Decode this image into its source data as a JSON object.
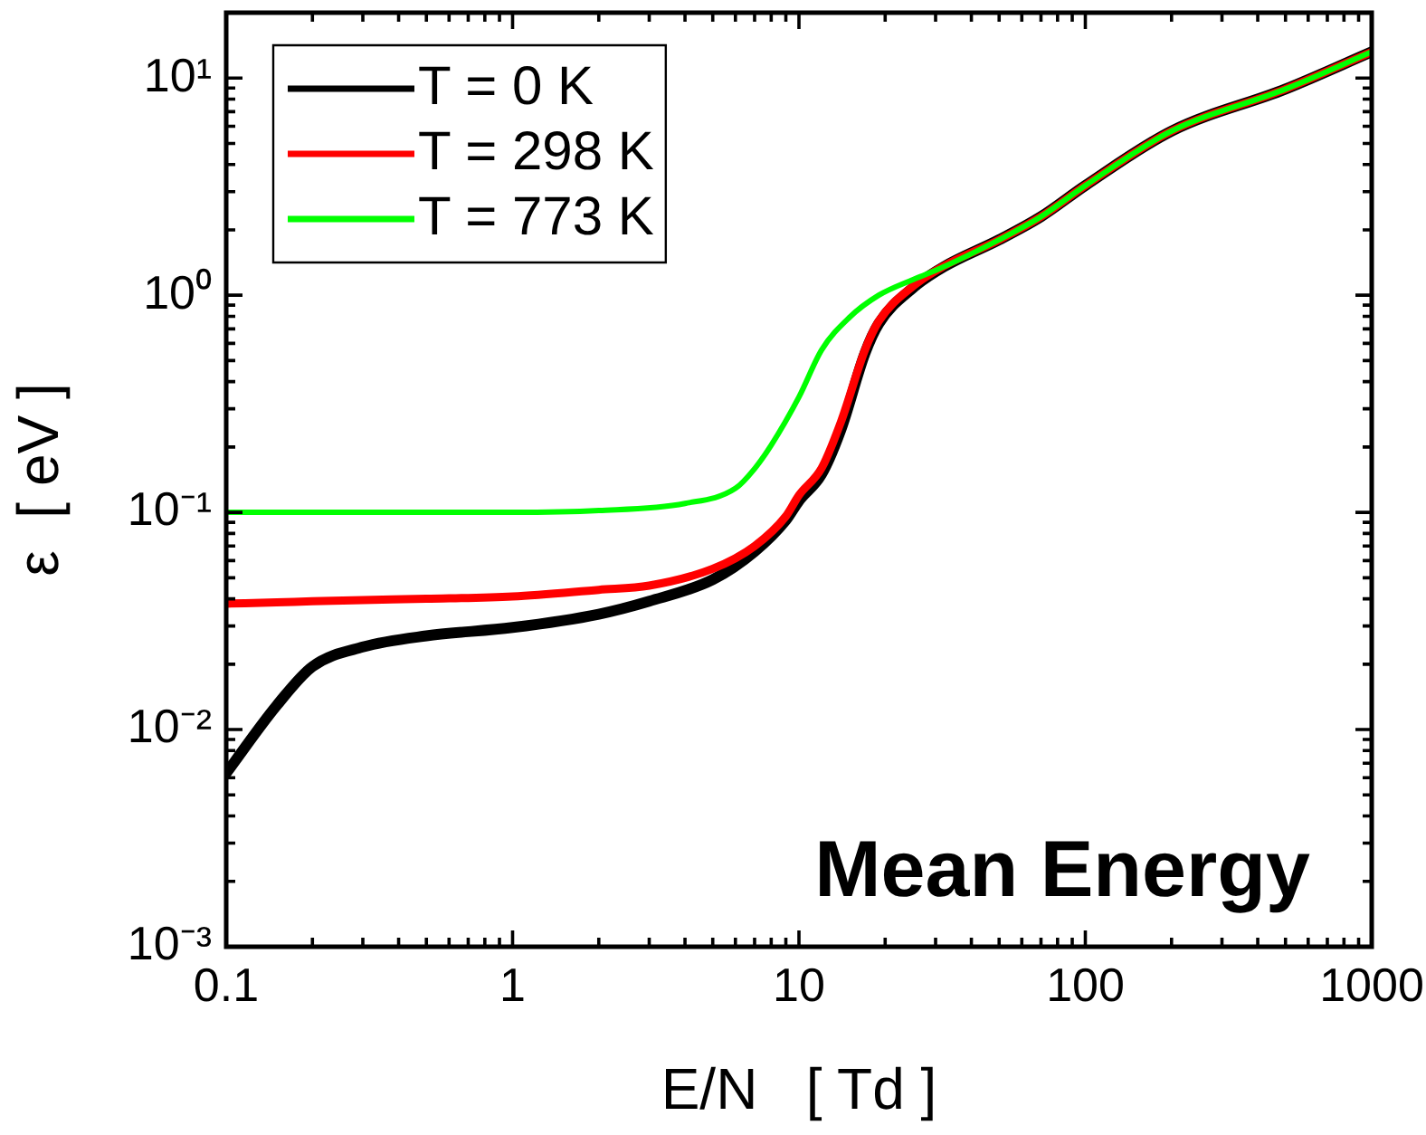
{
  "chart_data": {
    "type": "line",
    "xlabel": "E/N   [ Td ]",
    "ylabel": "ε  [ eV ]",
    "log": "xy",
    "legend": "top left",
    "grid": false,
    "marker": "none",
    "line_style": "solid",
    "xlim": [
      0.1,
      1000
    ],
    "ylim": [
      0.001,
      20
    ],
    "xticks": [
      {
        "value": 0.1,
        "label": "0.1"
      },
      {
        "value": 0.2,
        "label": null
      },
      {
        "value": 0.3,
        "label": null
      },
      {
        "value": 0.4,
        "label": null
      },
      {
        "value": 0.5,
        "label": null
      },
      {
        "value": 0.6,
        "label": null
      },
      {
        "value": 0.7,
        "label": null
      },
      {
        "value": 0.8,
        "label": null
      },
      {
        "value": 0.9,
        "label": null
      },
      {
        "value": 1,
        "label": "1"
      },
      {
        "value": 2,
        "label": null
      },
      {
        "value": 3,
        "label": null
      },
      {
        "value": 4,
        "label": null
      },
      {
        "value": 5,
        "label": null
      },
      {
        "value": 6,
        "label": null
      },
      {
        "value": 7,
        "label": null
      },
      {
        "value": 8,
        "label": null
      },
      {
        "value": 9,
        "label": null
      },
      {
        "value": 10,
        "label": "10"
      },
      {
        "value": 20,
        "label": null
      },
      {
        "value": 30,
        "label": null
      },
      {
        "value": 40,
        "label": null
      },
      {
        "value": 50,
        "label": null
      },
      {
        "value": 60,
        "label": null
      },
      {
        "value": 70,
        "label": null
      },
      {
        "value": 80,
        "label": null
      },
      {
        "value": 90,
        "label": null
      },
      {
        "value": 100,
        "label": "100"
      },
      {
        "value": 200,
        "label": null
      },
      {
        "value": 300,
        "label": null
      },
      {
        "value": 400,
        "label": null
      },
      {
        "value": 500,
        "label": null
      },
      {
        "value": 600,
        "label": null
      },
      {
        "value": 700,
        "label": null
      },
      {
        "value": 800,
        "label": null
      },
      {
        "value": 900,
        "label": null
      },
      {
        "value": 1000,
        "label": "1000"
      }
    ],
    "yticks": [
      {
        "value": 0.001,
        "label": "10⁻³"
      },
      {
        "value": 0.002,
        "label": null
      },
      {
        "value": 0.003,
        "label": null
      },
      {
        "value": 0.004,
        "label": null
      },
      {
        "value": 0.005,
        "label": null
      },
      {
        "value": 0.006,
        "label": null
      },
      {
        "value": 0.007,
        "label": null
      },
      {
        "value": 0.008,
        "label": null
      },
      {
        "value": 0.009,
        "label": null
      },
      {
        "value": 0.01,
        "label": "10⁻²"
      },
      {
        "value": 0.02,
        "label": null
      },
      {
        "value": 0.03,
        "label": null
      },
      {
        "value": 0.04,
        "label": null
      },
      {
        "value": 0.05,
        "label": null
      },
      {
        "value": 0.06,
        "label": null
      },
      {
        "value": 0.07,
        "label": null
      },
      {
        "value": 0.08,
        "label": null
      },
      {
        "value": 0.09,
        "label": null
      },
      {
        "value": 0.1,
        "label": "10⁻¹"
      },
      {
        "value": 0.2,
        "label": null
      },
      {
        "value": 0.3,
        "label": null
      },
      {
        "value": 0.4,
        "label": null
      },
      {
        "value": 0.5,
        "label": null
      },
      {
        "value": 0.6,
        "label": null
      },
      {
        "value": 0.7,
        "label": null
      },
      {
        "value": 0.8,
        "label": null
      },
      {
        "value": 0.9,
        "label": null
      },
      {
        "value": 1,
        "label": "10⁰"
      },
      {
        "value": 2,
        "label": null
      },
      {
        "value": 3,
        "label": null
      },
      {
        "value": 4,
        "label": null
      },
      {
        "value": 5,
        "label": null
      },
      {
        "value": 6,
        "label": null
      },
      {
        "value": 7,
        "label": null
      },
      {
        "value": 8,
        "label": null
      },
      {
        "value": 9,
        "label": null
      },
      {
        "value": 10,
        "label": "10¹"
      },
      {
        "value": 20,
        "label": null
      }
    ],
    "annotations": [
      "Mean Energy"
    ],
    "series": [
      {
        "name": "T = 0 K",
        "color": "#000000",
        "x": [
          0.1,
          0.15,
          0.2,
          0.3,
          0.5,
          1,
          2,
          3,
          5,
          7,
          9,
          10,
          12,
          14,
          17,
          19,
          25,
          32,
          50,
          70,
          100,
          200,
          500,
          1000
        ],
        "values": [
          0.0063,
          0.0129,
          0.0195,
          0.024,
          0.027,
          0.0295,
          0.034,
          0.039,
          0.049,
          0.066,
          0.092,
          0.113,
          0.15,
          0.24,
          0.54,
          0.74,
          1.08,
          1.35,
          1.8,
          2.3,
          3.2,
          5.7,
          8.9,
          13.2
        ]
      },
      {
        "name": "T = 298 K",
        "color": "#ff0000",
        "x": [
          0.1,
          0.15,
          0.2,
          0.3,
          0.5,
          1,
          2,
          3,
          5,
          7,
          9,
          10,
          12,
          14,
          17,
          19,
          25,
          32,
          50,
          70,
          100,
          200,
          500,
          1000
        ],
        "values": [
          0.038,
          0.0385,
          0.039,
          0.0395,
          0.04,
          0.041,
          0.044,
          0.046,
          0.055,
          0.07,
          0.096,
          0.12,
          0.16,
          0.26,
          0.56,
          0.76,
          1.1,
          1.36,
          1.8,
          2.3,
          3.2,
          5.7,
          8.9,
          13.2
        ]
      },
      {
        "name": "T = 773 K",
        "color": "#00ff00",
        "x": [
          0.1,
          0.3,
          1,
          2,
          4,
          6,
          7,
          8,
          10,
          12,
          15,
          19,
          25,
          30,
          50,
          70,
          100,
          200,
          500,
          1000
        ],
        "values": [
          0.1,
          0.1,
          0.1,
          0.102,
          0.11,
          0.129,
          0.159,
          0.204,
          0.34,
          0.56,
          0.79,
          1.0,
          1.18,
          1.3,
          1.8,
          2.3,
          3.2,
          5.7,
          8.9,
          13.2
        ]
      }
    ]
  }
}
